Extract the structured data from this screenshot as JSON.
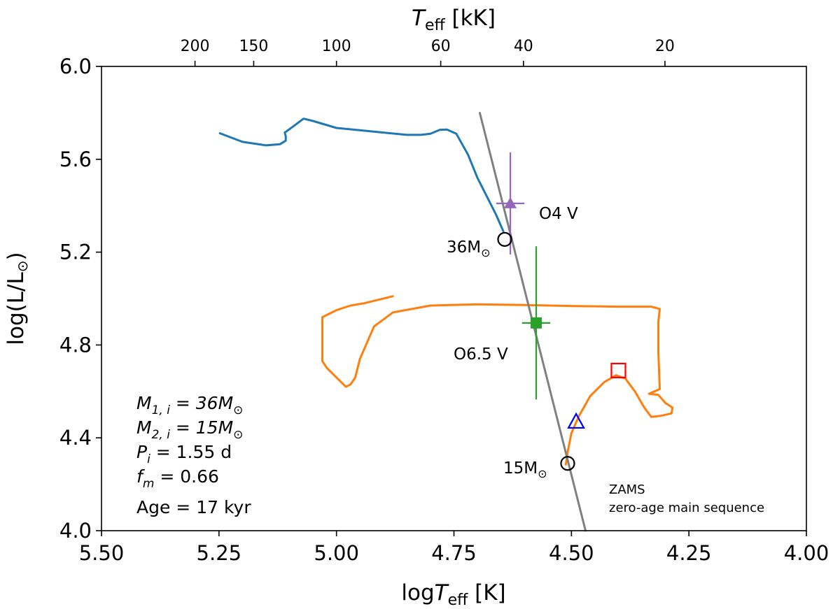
{
  "chart_data": {
    "type": "line",
    "title": "",
    "xlabel": "logT_eff [K]",
    "ylabel": "log(L/L⊙)",
    "top_xlabel": "T_eff [kK]",
    "xlim": [
      5.5,
      4.0
    ],
    "ylim": [
      4.0,
      6.0
    ],
    "grid": false,
    "x_ticks": [
      5.5,
      5.25,
      5.0,
      4.75,
      4.5,
      4.25,
      4.0
    ],
    "x_tick_labels": [
      "5.50",
      "5.25",
      "5.00",
      "4.75",
      "4.50",
      "4.25",
      "4.00"
    ],
    "y_ticks": [
      4.0,
      4.4,
      4.8,
      5.2,
      5.6,
      6.0
    ],
    "y_tick_labels": [
      "4.0",
      "4.4",
      "4.8",
      "5.2",
      "5.6",
      "6.0"
    ],
    "top_ticks_kK": [
      200,
      150,
      100,
      60,
      40,
      20
    ],
    "top_tick_labels": [
      "200",
      "150",
      "100",
      "60",
      "40",
      "20"
    ],
    "series": [
      {
        "name": "primary track (36 Msun)",
        "color": "#1f77b4",
        "points": [
          [
            5.248,
            5.712
          ],
          [
            5.2,
            5.675
          ],
          [
            5.15,
            5.66
          ],
          [
            5.12,
            5.665
          ],
          [
            5.108,
            5.68
          ],
          [
            5.108,
            5.7
          ],
          [
            5.11,
            5.715
          ],
          [
            5.093,
            5.74
          ],
          [
            5.07,
            5.775
          ],
          [
            5.05,
            5.765
          ],
          [
            5.0,
            5.735
          ],
          [
            4.95,
            5.725
          ],
          [
            4.9,
            5.715
          ],
          [
            4.85,
            5.705
          ],
          [
            4.82,
            5.705
          ],
          [
            4.8,
            5.71
          ],
          [
            4.78,
            5.727
          ],
          [
            4.765,
            5.728
          ],
          [
            4.745,
            5.71
          ],
          [
            4.72,
            5.62
          ],
          [
            4.7,
            5.52
          ],
          [
            4.68,
            5.44
          ],
          [
            4.66,
            5.36
          ],
          [
            4.645,
            5.29
          ]
        ]
      },
      {
        "name": "secondary track (15 Msun)",
        "color": "#ff7f0e",
        "points": [
          [
            4.512,
            4.285
          ],
          [
            4.508,
            4.34
          ],
          [
            4.5,
            4.42
          ],
          [
            4.485,
            4.49
          ],
          [
            4.46,
            4.58
          ],
          [
            4.43,
            4.64
          ],
          [
            4.405,
            4.67
          ],
          [
            4.385,
            4.655
          ],
          [
            4.365,
            4.6
          ],
          [
            4.345,
            4.53
          ],
          [
            4.33,
            4.49
          ],
          [
            4.31,
            4.495
          ],
          [
            4.287,
            4.505
          ],
          [
            4.285,
            4.53
          ],
          [
            4.3,
            4.55
          ],
          [
            4.315,
            4.585
          ],
          [
            4.335,
            4.59
          ],
          [
            4.312,
            4.61
          ],
          [
            4.313,
            4.66
          ],
          [
            4.315,
            4.77
          ],
          [
            4.315,
            4.9
          ],
          [
            4.312,
            4.955
          ],
          [
            4.33,
            4.965
          ],
          [
            4.4,
            4.965
          ],
          [
            4.5,
            4.968
          ],
          [
            4.6,
            4.972
          ],
          [
            4.7,
            4.975
          ],
          [
            4.8,
            4.97
          ],
          [
            4.88,
            4.94
          ],
          [
            4.92,
            4.88
          ],
          [
            4.95,
            4.74
          ],
          [
            4.96,
            4.66
          ],
          [
            4.97,
            4.63
          ],
          [
            4.98,
            4.62
          ],
          [
            5.0,
            4.66
          ],
          [
            5.02,
            4.7
          ],
          [
            5.03,
            4.73
          ],
          [
            5.03,
            4.87
          ],
          [
            5.03,
            4.92
          ],
          [
            5.0,
            4.95
          ],
          [
            4.97,
            4.97
          ],
          [
            4.94,
            4.98
          ],
          [
            4.88,
            5.01
          ]
        ]
      },
      {
        "name": "ZAMS",
        "color": "#808080",
        "points": [
          [
            4.695,
            5.8
          ],
          [
            4.47,
            4.0
          ]
        ]
      }
    ],
    "observations": [
      {
        "label": "O4 V",
        "x": 4.63,
        "y": 5.41,
        "xerr": 0.03,
        "yerr": 0.22,
        "marker": "triangle",
        "color": "#9467bd"
      },
      {
        "label": "O6.5 V",
        "x": 4.575,
        "y": 4.895,
        "xerr": 0.03,
        "yerr": 0.33,
        "marker": "square",
        "color": "#2ca02c"
      }
    ],
    "markers": [
      {
        "label": "36M⊙",
        "x": 4.642,
        "y": 5.255,
        "marker": "open-circle",
        "color": "#000000"
      },
      {
        "label": "15M⊙",
        "x": 4.508,
        "y": 4.29,
        "marker": "open-circle",
        "color": "#000000"
      },
      {
        "label": "",
        "x": 4.49,
        "y": 4.47,
        "marker": "open-triangle",
        "color": "#0000ff"
      },
      {
        "label": "",
        "x": 4.4,
        "y": 4.69,
        "marker": "open-square",
        "color": "#ff0000"
      }
    ],
    "annotations": {
      "o4v": "O4 V",
      "o65v": "O6.5 V",
      "m36": "36M",
      "m15": "15M",
      "sun": "⊙",
      "zams_line1": "ZAMS",
      "zams_line2": "zero-age main sequence"
    },
    "parameters": {
      "m1_name": "M",
      "m1_sub": "1, i",
      "m1_value": "36M",
      "m2_name": "M",
      "m2_sub": "2, i",
      "m2_value": "15M",
      "p_name": "P",
      "p_sub": "i",
      "p_value": "1.55 d",
      "f_name": "f",
      "f_sub": "m",
      "f_value": "0.66",
      "age": "Age = 17 kyr"
    },
    "axis_text": {
      "bottom_prefix": "log",
      "bottom_T": "T",
      "bottom_sub": "eff",
      "bottom_unit": " [K]",
      "top_T": "T",
      "top_sub": "eff",
      "top_unit": " [kK]",
      "left_main": "log(L/L",
      "left_close": ")"
    }
  }
}
